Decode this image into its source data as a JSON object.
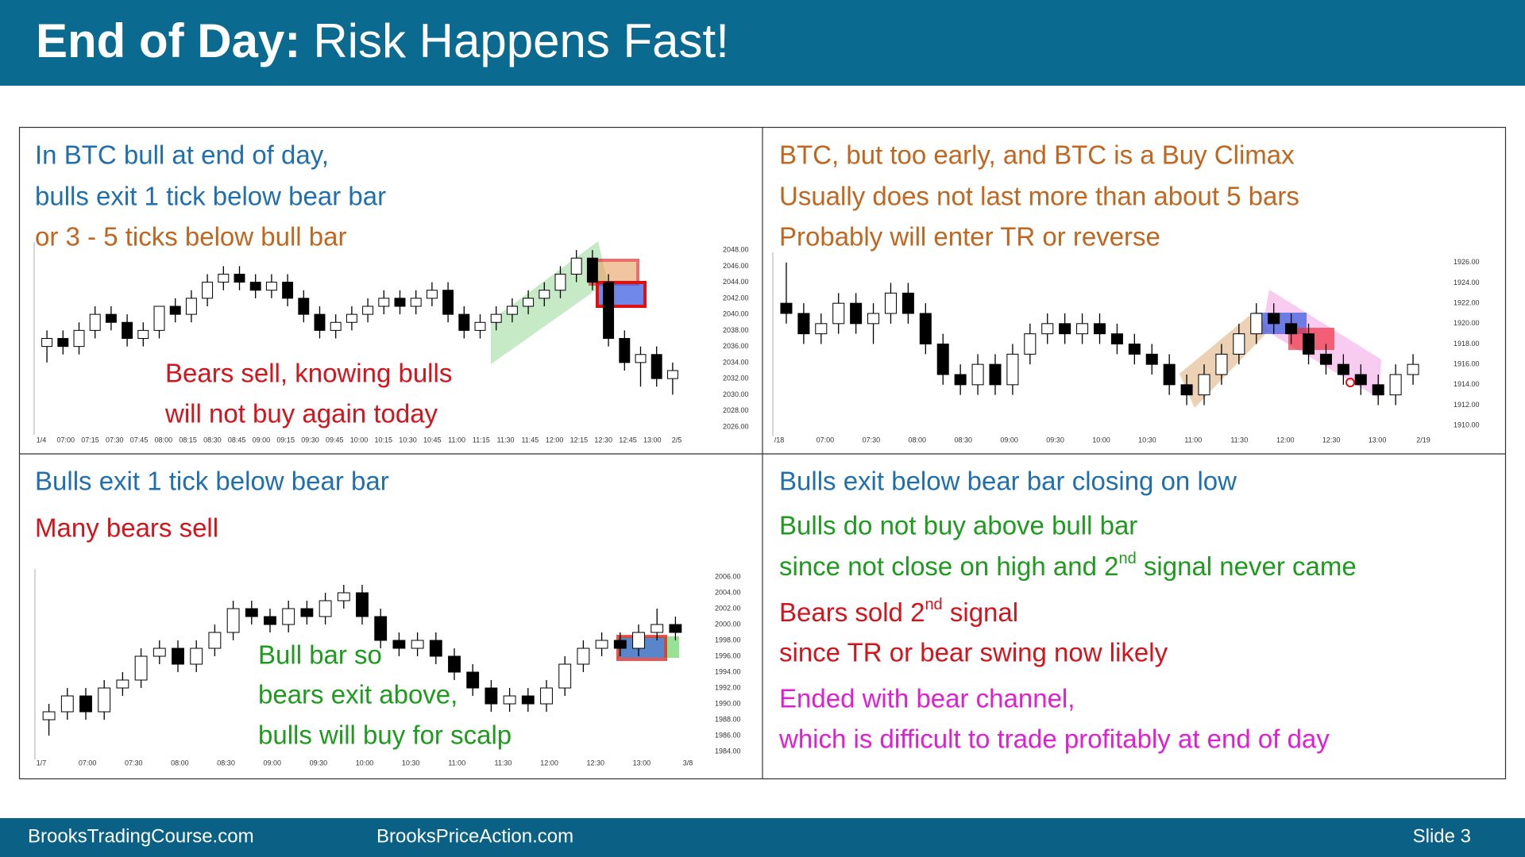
{
  "header": {
    "title_bold": "End of Day:",
    "title_rest": "Risk Happens Fast!"
  },
  "panels": [
    {
      "lines": [
        {
          "text": "In BTC bull at end of day,",
          "color": "#1f6fae"
        },
        {
          "text": "bulls exit 1 tick below bear bar",
          "color": "#1f6fae"
        },
        {
          "text": "or 3 - 5 ticks below bull bar",
          "color": "#c0661e"
        }
      ],
      "annotation": {
        "color": "#d4141c",
        "lines": [
          "Bears sell, knowing bulls",
          "will not buy again today"
        ]
      },
      "chart": {
        "type": "candlestick",
        "ylim": [
          2025,
          2049
        ],
        "yticks": [
          {
            "value": 2026,
            "label": "2026.00"
          },
          {
            "value": 2028,
            "label": "2028.00"
          },
          {
            "value": 2030,
            "label": "2030.00"
          },
          {
            "value": 2032,
            "label": "2032.00"
          },
          {
            "value": 2034,
            "label": "2034.00"
          },
          {
            "value": 2036,
            "label": "2036.00"
          },
          {
            "value": 2038,
            "label": "2038.00"
          },
          {
            "value": 2040,
            "label": "2040.00"
          },
          {
            "value": 2042,
            "label": "2042.00"
          },
          {
            "value": 2044,
            "label": "2044.00"
          },
          {
            "value": 2046,
            "label": "2046.00"
          },
          {
            "value": 2048,
            "label": "2048.00"
          }
        ],
        "categories": [
          "1/4",
          "07:00",
          "07:15",
          "07:30",
          "07:45",
          "08:00",
          "08:15",
          "08:30",
          "08:45",
          "09:00",
          "09:15",
          "09:30",
          "09:45",
          "10:00",
          "10:15",
          "10:30",
          "10:45",
          "11:00",
          "11:15",
          "11:30",
          "11:45",
          "12:00",
          "12:15",
          "12:30",
          "12:45",
          "13:00",
          "2/5"
        ],
        "candles": [
          [
            2036,
            2038,
            2034,
            2037
          ],
          [
            2037,
            2038,
            2035,
            2036
          ],
          [
            2036,
            2039,
            2035,
            2038
          ],
          [
            2038,
            2041,
            2037,
            2040
          ],
          [
            2040,
            2041,
            2038,
            2039
          ],
          [
            2039,
            2040,
            2036,
            2037
          ],
          [
            2037,
            2039,
            2036,
            2038
          ],
          [
            2038,
            2041,
            2037,
            2041
          ],
          [
            2041,
            2042,
            2039,
            2040
          ],
          [
            2040,
            2043,
            2039,
            2042
          ],
          [
            2042,
            2045,
            2041,
            2044
          ],
          [
            2044,
            2046,
            2043,
            2045
          ],
          [
            2045,
            2046,
            2043,
            2044
          ],
          [
            2044,
            2045,
            2042,
            2043
          ],
          [
            2043,
            2045,
            2042,
            2044
          ],
          [
            2044,
            2045,
            2041,
            2042
          ],
          [
            2042,
            2043,
            2039,
            2040
          ],
          [
            2040,
            2041,
            2037,
            2038
          ],
          [
            2038,
            2040,
            2037,
            2039
          ],
          [
            2039,
            2041,
            2038,
            2040
          ],
          [
            2040,
            2042,
            2039,
            2041
          ],
          [
            2041,
            2043,
            2040,
            2042
          ],
          [
            2042,
            2043,
            2040,
            2041
          ],
          [
            2041,
            2043,
            2040,
            2042
          ],
          [
            2042,
            2044,
            2041,
            2043
          ],
          [
            2043,
            2044,
            2039,
            2040
          ],
          [
            2040,
            2041,
            2037,
            2038
          ],
          [
            2038,
            2040,
            2037,
            2039
          ],
          [
            2039,
            2041,
            2038,
            2040
          ],
          [
            2040,
            2042,
            2039,
            2041
          ],
          [
            2041,
            2043,
            2040,
            2042
          ],
          [
            2042,
            2044,
            2041,
            2043
          ],
          [
            2043,
            2046,
            2042,
            2045
          ],
          [
            2045,
            2048,
            2044,
            2047
          ],
          [
            2047,
            2048,
            2043,
            2044
          ],
          [
            2044,
            2045,
            2036,
            2037
          ],
          [
            2037,
            2038,
            2033,
            2034
          ],
          [
            2034,
            2036,
            2031,
            2035
          ],
          [
            2035,
            2036,
            2031,
            2032
          ],
          [
            2032,
            2034,
            2030,
            2033
          ]
        ]
      }
    },
    {
      "lines": [
        {
          "text": "BTC, but too early, and BTC is a Buy Climax",
          "color": "#c0661e"
        },
        {
          "text": "Usually does not last more than about 5 bars",
          "color": "#c0661e"
        },
        {
          "text": "Probably will enter TR or reverse",
          "color": "#c0661e"
        }
      ],
      "chart": {
        "type": "candlestick",
        "ylim": [
          1909,
          1927
        ],
        "yticks": [
          {
            "value": 1910,
            "label": "1910.00"
          },
          {
            "value": 1912,
            "label": "1912.00"
          },
          {
            "value": 1914,
            "label": "1914.00"
          },
          {
            "value": 1916,
            "label": "1916.00"
          },
          {
            "value": 1918,
            "label": "1918.00"
          },
          {
            "value": 1920,
            "label": "1920.00"
          },
          {
            "value": 1922,
            "label": "1922.00"
          },
          {
            "value": 1924,
            "label": "1924.00"
          },
          {
            "value": 1926,
            "label": "1926.00"
          }
        ],
        "categories": [
          "/18",
          "07:00",
          "07:30",
          "08:00",
          "08:30",
          "09:00",
          "09:30",
          "10:00",
          "10:30",
          "11:00",
          "11:30",
          "12:00",
          "12:30",
          "13:00",
          "2/19"
        ],
        "candles": [
          [
            1922,
            1926,
            1920,
            1921
          ],
          [
            1921,
            1922,
            1918,
            1919
          ],
          [
            1919,
            1921,
            1918,
            1920
          ],
          [
            1920,
            1923,
            1919,
            1922
          ],
          [
            1922,
            1923,
            1919,
            1920
          ],
          [
            1920,
            1922,
            1918,
            1921
          ],
          [
            1921,
            1924,
            1920,
            1923
          ],
          [
            1923,
            1924,
            1920,
            1921
          ],
          [
            1921,
            1922,
            1917,
            1918
          ],
          [
            1918,
            1919,
            1914,
            1915
          ],
          [
            1915,
            1916,
            1913,
            1914
          ],
          [
            1914,
            1917,
            1913,
            1916
          ],
          [
            1916,
            1917,
            1913,
            1914
          ],
          [
            1914,
            1918,
            1913,
            1917
          ],
          [
            1917,
            1920,
            1916,
            1919
          ],
          [
            1919,
            1921,
            1918,
            1920
          ],
          [
            1920,
            1921,
            1918,
            1919
          ],
          [
            1919,
            1921,
            1918,
            1920
          ],
          [
            1920,
            1921,
            1918,
            1919
          ],
          [
            1919,
            1920,
            1917,
            1918
          ],
          [
            1918,
            1919,
            1916,
            1917
          ],
          [
            1917,
            1918,
            1915,
            1916
          ],
          [
            1916,
            1917,
            1913,
            1914
          ],
          [
            1914,
            1915,
            1912,
            1913
          ],
          [
            1913,
            1916,
            1912,
            1915
          ],
          [
            1915,
            1918,
            1914,
            1917
          ],
          [
            1917,
            1920,
            1916,
            1919
          ],
          [
            1919,
            1922,
            1918,
            1921
          ],
          [
            1921,
            1922,
            1919,
            1920
          ],
          [
            1920,
            1921,
            1918,
            1919
          ],
          [
            1919,
            1920,
            1916,
            1917
          ],
          [
            1917,
            1918,
            1915,
            1916
          ],
          [
            1916,
            1917,
            1914,
            1915
          ],
          [
            1915,
            1916,
            1913,
            1914
          ],
          [
            1914,
            1915,
            1912,
            1913
          ],
          [
            1913,
            1916,
            1912,
            1915
          ],
          [
            1915,
            1917,
            1914,
            1916
          ]
        ]
      }
    },
    {
      "lines": [
        {
          "text": "Bulls exit 1 tick below bear bar",
          "color": "#1f6fae"
        },
        {
          "text": "Many bears sell",
          "color": "#d4141c"
        }
      ],
      "annotation": {
        "color": "#1e9a1e",
        "lines": [
          "Bull bar so",
          "bears exit above,",
          "bulls will buy for scalp"
        ]
      },
      "chart": {
        "type": "candlestick",
        "ylim": [
          1983,
          2007
        ],
        "yticks": [
          {
            "value": 1984,
            "label": "1984.00"
          },
          {
            "value": 1986,
            "label": "1986.00"
          },
          {
            "value": 1988,
            "label": "1988.00"
          },
          {
            "value": 1990,
            "label": "1990.00"
          },
          {
            "value": 1992,
            "label": "1992.00"
          },
          {
            "value": 1994,
            "label": "1994.00"
          },
          {
            "value": 1996,
            "label": "1996.00"
          },
          {
            "value": 1998,
            "label": "1998.00"
          },
          {
            "value": 2000,
            "label": "2000.00"
          },
          {
            "value": 2002,
            "label": "2002.00"
          },
          {
            "value": 2004,
            "label": "2004.00"
          },
          {
            "value": 2006,
            "label": "2006.00"
          }
        ],
        "categories": [
          "1/7",
          "07:00",
          "07:30",
          "08:00",
          "08:30",
          "09:00",
          "09:30",
          "10:00",
          "10:30",
          "11:00",
          "11:30",
          "12:00",
          "12:30",
          "13:00",
          "3/8"
        ],
        "candles": [
          [
            1988,
            1990,
            1986,
            1989
          ],
          [
            1989,
            1992,
            1988,
            1991
          ],
          [
            1991,
            1992,
            1988,
            1989
          ],
          [
            1989,
            1993,
            1988,
            1992
          ],
          [
            1992,
            1994,
            1991,
            1993
          ],
          [
            1993,
            1997,
            1992,
            1996
          ],
          [
            1996,
            1998,
            1995,
            1997
          ],
          [
            1997,
            1998,
            1994,
            1995
          ],
          [
            1995,
            1998,
            1994,
            1997
          ],
          [
            1997,
            2000,
            1996,
            1999
          ],
          [
            1999,
            2003,
            1998,
            2002
          ],
          [
            2002,
            2003,
            2000,
            2001
          ],
          [
            2001,
            2002,
            1999,
            2000
          ],
          [
            2000,
            2003,
            1999,
            2002
          ],
          [
            2002,
            2003,
            2000,
            2001
          ],
          [
            2001,
            2004,
            2000,
            2003
          ],
          [
            2003,
            2005,
            2002,
            2004
          ],
          [
            2004,
            2005,
            2000,
            2001
          ],
          [
            2001,
            2002,
            1997,
            1998
          ],
          [
            1998,
            1999,
            1996,
            1997
          ],
          [
            1997,
            1999,
            1996,
            1998
          ],
          [
            1998,
            1999,
            1995,
            1996
          ],
          [
            1996,
            1997,
            1993,
            1994
          ],
          [
            1994,
            1995,
            1991,
            1992
          ],
          [
            1992,
            1993,
            1989,
            1990
          ],
          [
            1990,
            1992,
            1989,
            1991
          ],
          [
            1991,
            1992,
            1989,
            1990
          ],
          [
            1990,
            1993,
            1989,
            1992
          ],
          [
            1992,
            1996,
            1991,
            1995
          ],
          [
            1995,
            1998,
            1994,
            1997
          ],
          [
            1997,
            1999,
            1996,
            1998
          ],
          [
            1998,
            1999,
            1996,
            1997
          ],
          [
            1997,
            2000,
            1996,
            1999
          ],
          [
            1999,
            2002,
            1998,
            2000
          ],
          [
            2000,
            2001,
            1998,
            1999
          ]
        ]
      }
    },
    {
      "lines": [
        {
          "text": "Bulls exit below bear bar closing on low",
          "color": "#1f6fae"
        },
        {
          "text": "Bulls do not buy above bull bar",
          "color": "#1e9a1e"
        },
        {
          "parts": [
            "since not close on high and 2",
            "nd",
            " signal never came"
          ],
          "color": "#1e9a1e"
        },
        {
          "parts": [
            "Bears sold 2",
            "nd",
            " signal"
          ],
          "color": "#d4141c"
        },
        {
          "text": "since TR or bear swing now likely",
          "color": "#d4141c"
        },
        {
          "text": "Ended with bear channel,",
          "color": "#e020d0"
        },
        {
          "text": "which is difficult to trade profitably at end of day",
          "color": "#e020d0"
        }
      ]
    }
  ],
  "footer": {
    "left": "BrooksTradingCourse.com",
    "middle": "BrooksPriceAction.com",
    "slide": "Slide 3"
  }
}
